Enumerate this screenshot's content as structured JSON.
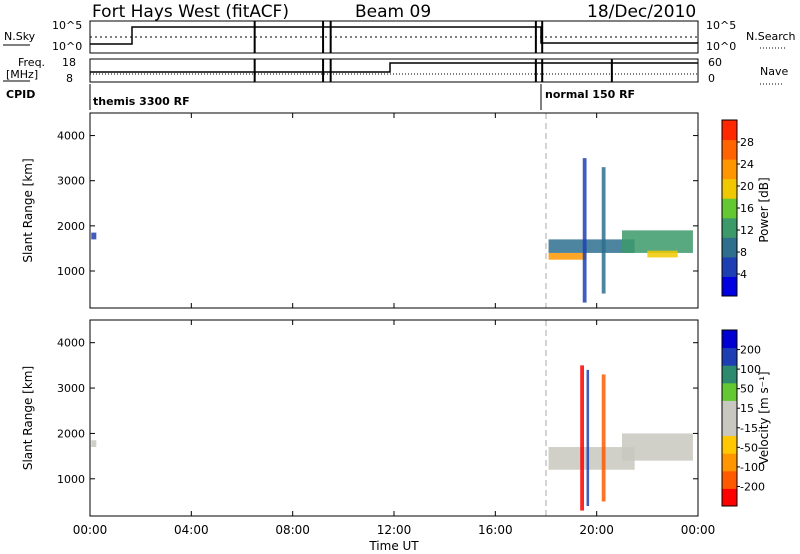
{
  "header": {
    "station": "Fort Hays West (fitACF)",
    "beam": "Beam 09",
    "date": "18/Dec/2010"
  },
  "top_panels": {
    "nsky_label": "N.Sky",
    "nsky_ticks": [
      "10^5",
      "10^0"
    ],
    "nsky_right_ticks": [
      "10^5",
      "10^0"
    ],
    "nsearch_label": "N.Search",
    "freq_label_line1": "Freq.",
    "freq_label_line2": "[MHz]",
    "freq_ticks": [
      "18",
      "8"
    ],
    "nave_ticks": [
      "60",
      "0"
    ],
    "nave_label": "Nave",
    "cpid_label": "CPID",
    "cpid_segments": [
      {
        "start_hour": 0.0,
        "label": "themis 3300 RF"
      },
      {
        "start_hour": 18.0,
        "label": "normal 150 RF"
      }
    ]
  },
  "axes": {
    "ylabel": "Slant Range [km]",
    "yticks": [
      "1000",
      "2000",
      "3000",
      "4000"
    ],
    "xlabel": "Time UT",
    "xticks": [
      "00:00",
      "04:00",
      "08:00",
      "12:00",
      "16:00",
      "20:00",
      "00:00"
    ]
  },
  "colorbars": {
    "power": {
      "label": "Power [dB]",
      "ticks": [
        "4",
        "8",
        "12",
        "16",
        "20",
        "24",
        "28"
      ],
      "colors": [
        "#0000e0",
        "#1e3fb4",
        "#2e6f8e",
        "#3c9a6a",
        "#64c832",
        "#f0c800",
        "#ff9600",
        "#ff6400",
        "#ff2800"
      ]
    },
    "velocity": {
      "label": "Velocity [m s⁻¹]",
      "ticks": [
        "200",
        "100",
        "50",
        "15",
        "-15",
        "-50",
        "-100",
        "-200"
      ],
      "colors": [
        "#ff0000",
        "#ff5a00",
        "#ff9600",
        "#ffc800",
        "#c8c8c0",
        "#c8c8c0",
        "#64c832",
        "#2e8a6e",
        "#1e3fb4",
        "#0000d0"
      ]
    }
  },
  "chart_data": [
    {
      "type": "heatmap",
      "title": "Power",
      "xlabel": "Time UT",
      "ylabel": "Slant Range [km]",
      "xlim_hours": [
        0,
        24
      ],
      "ylim": [
        180,
        4500
      ],
      "zlabel": "Power [dB]",
      "zlim": [
        0,
        30
      ],
      "regions": [
        {
          "t0": 0.05,
          "t1": 0.25,
          "r0": 1700,
          "r1": 1850,
          "value": 6
        },
        {
          "t0": 18.1,
          "t1": 19.6,
          "r0": 1250,
          "r1": 1400,
          "value": 20
        },
        {
          "t0": 18.1,
          "t1": 21.5,
          "r0": 1400,
          "r1": 1700,
          "value": 8
        },
        {
          "t0": 21.0,
          "t1": 23.8,
          "r0": 1400,
          "r1": 1900,
          "value": 10
        },
        {
          "t0": 22.0,
          "t1": 23.2,
          "r0": 1300,
          "r1": 1450,
          "value": 18
        },
        {
          "t0": 19.45,
          "t1": 19.6,
          "r0": 300,
          "r1": 3500,
          "value": 6
        },
        {
          "t0": 20.2,
          "t1": 20.35,
          "r0": 500,
          "r1": 3300,
          "value": 7
        }
      ]
    },
    {
      "type": "heatmap",
      "title": "Velocity",
      "xlabel": "Time UT",
      "ylabel": "Slant Range [km]",
      "xlim_hours": [
        0,
        24
      ],
      "ylim": [
        180,
        4500
      ],
      "zlabel": "Velocity [m s-1]",
      "zlim": [
        -250,
        250
      ],
      "regions": [
        {
          "t0": 0.05,
          "t1": 0.25,
          "r0": 1700,
          "r1": 1850,
          "value": 0
        },
        {
          "t0": 18.1,
          "t1": 21.5,
          "r0": 1200,
          "r1": 1700,
          "value": 0
        },
        {
          "t0": 21.0,
          "t1": 23.8,
          "r0": 1400,
          "r1": 2000,
          "value": 0
        },
        {
          "t0": 19.35,
          "t1": 19.5,
          "r0": 300,
          "r1": 3500,
          "value": -200
        },
        {
          "t0": 19.6,
          "t1": 19.7,
          "r0": 400,
          "r1": 3400,
          "value": 200
        },
        {
          "t0": 20.2,
          "t1": 20.35,
          "r0": 500,
          "r1": 3300,
          "value": -150
        }
      ]
    }
  ]
}
